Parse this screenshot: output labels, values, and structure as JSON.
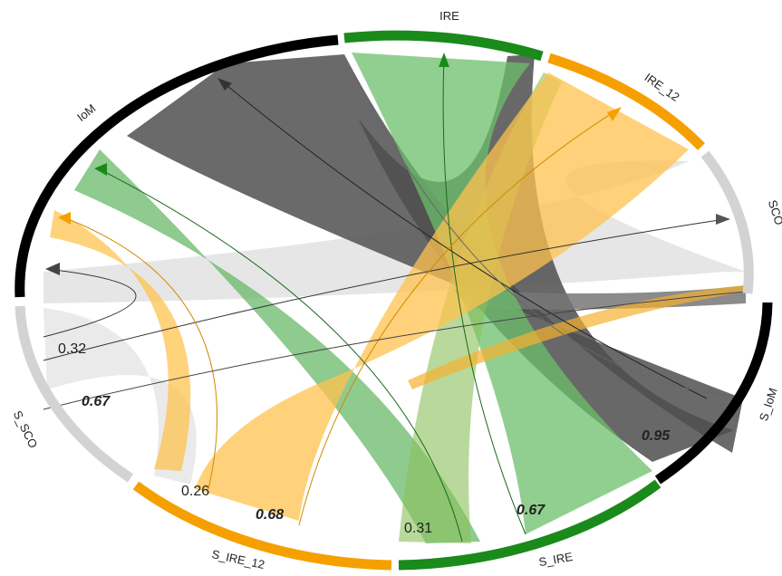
{
  "diagram": {
    "segments": [
      {
        "id": "IoM",
        "label": "IoM",
        "color": "#000000"
      },
      {
        "id": "IRE",
        "label": "IRE",
        "color": "#1a8a1a"
      },
      {
        "id": "IRE_12",
        "label": "IRE_12",
        "color": "#f5a000"
      },
      {
        "id": "SCO",
        "label": "SCO",
        "color": "#d3d3d3"
      },
      {
        "id": "S_IoM",
        "label": "S_IoM",
        "color": "#000000"
      },
      {
        "id": "S_IRE",
        "label": "S_IRE",
        "color": "#1a8a1a"
      },
      {
        "id": "S_IRE_12",
        "label": "S_IRE_12",
        "color": "#f5a000"
      },
      {
        "id": "S_SCO",
        "label": "S_SCO",
        "color": "#d3d3d3"
      }
    ],
    "values": [
      {
        "text": "0.32",
        "bold": false
      },
      {
        "text": "0.67",
        "bold": true
      },
      {
        "text": "0.26",
        "bold": false
      },
      {
        "text": "0.68",
        "bold": true
      },
      {
        "text": "0.31",
        "bold": false
      },
      {
        "text": "0.67",
        "bold": true
      },
      {
        "text": "0.95",
        "bold": true
      }
    ]
  }
}
